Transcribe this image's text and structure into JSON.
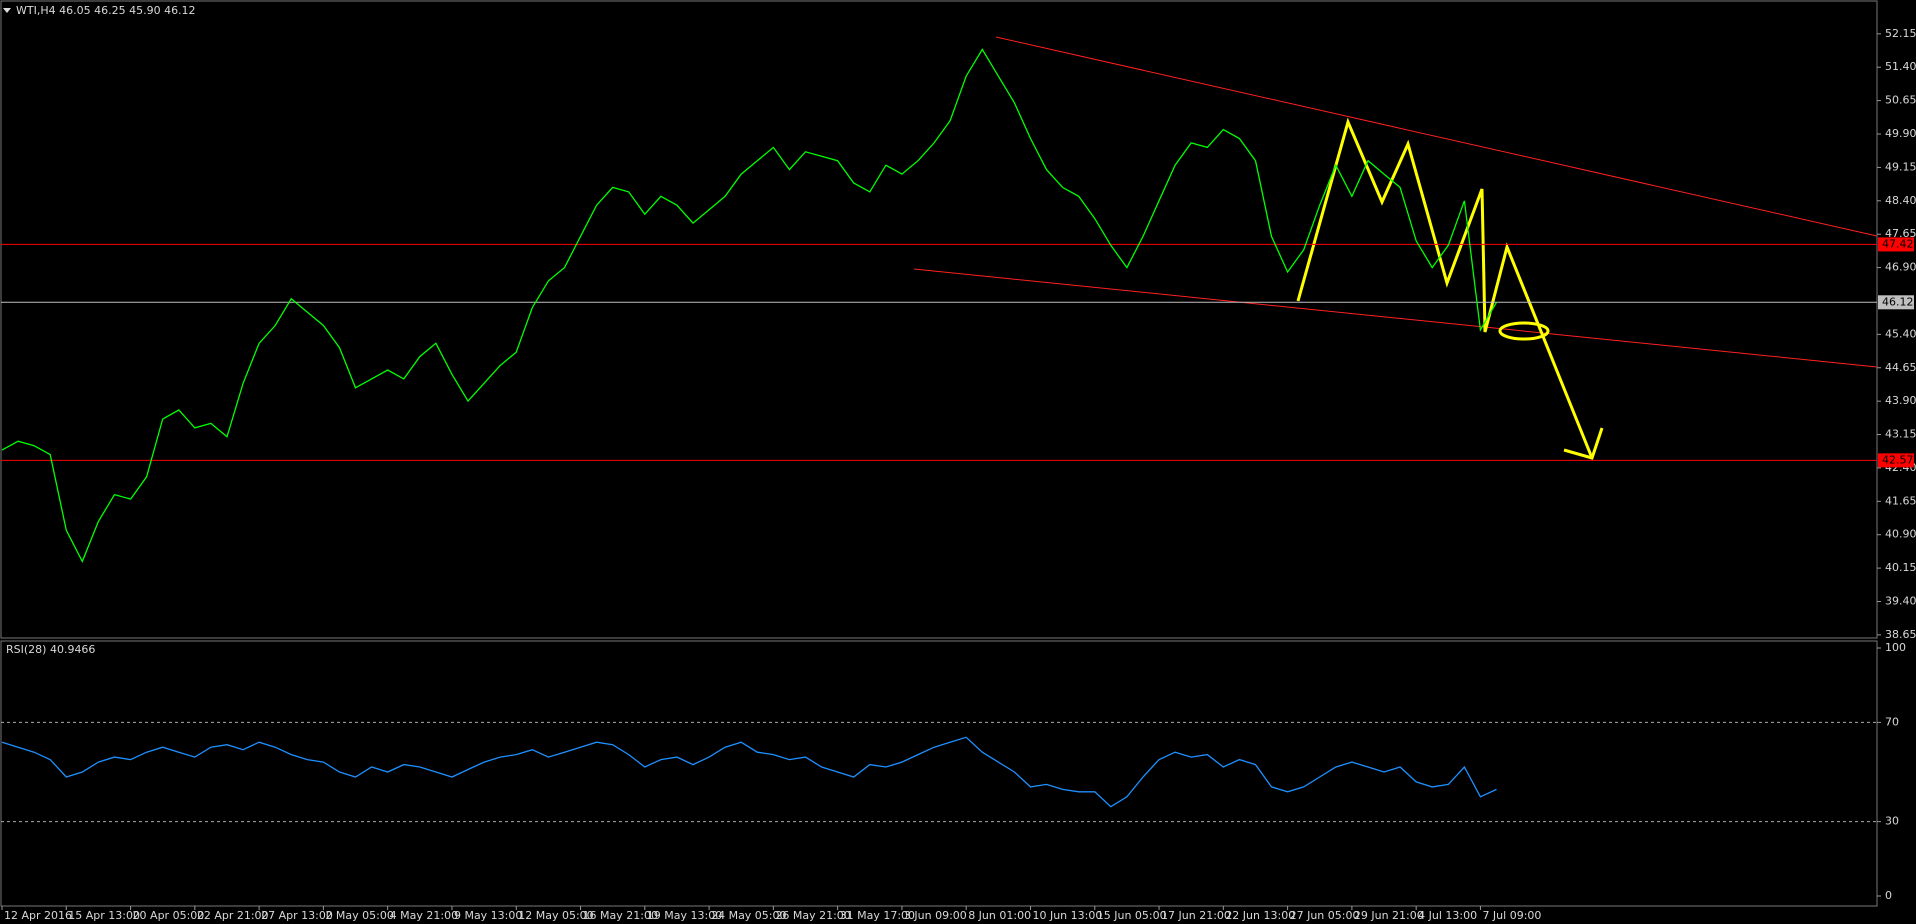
{
  "chart_data": [
    {
      "type": "line",
      "title": "WTI,H4  46.05 46.25 45.90 46.12",
      "categories": [
        "12 Apr 2016",
        null,
        null,
        null,
        "15 Apr 13:00",
        null,
        null,
        null,
        "20 Apr 05:00",
        null,
        null,
        null,
        "22 Apr 21:00",
        null,
        null,
        null,
        "27 Apr 13:00",
        null,
        null,
        null,
        "2 May 05:00",
        null,
        null,
        null,
        "4 May 21:00",
        null,
        null,
        null,
        "9 May 13:00",
        null,
        null,
        null,
        "12 May 05:00",
        null,
        null,
        null,
        "16 May 21:00",
        null,
        null,
        null,
        "19 May 13:00",
        null,
        null,
        null,
        "24 May 05:00",
        null,
        null,
        null,
        "26 May 21:00",
        null,
        null,
        null,
        "31 May 17:00",
        null,
        null,
        null,
        "3 Jun 09:00",
        null,
        null,
        null,
        "8 Jun 01:00",
        null,
        null,
        null,
        "10 Jun 13:00",
        null,
        null,
        null,
        "15 Jun 05:00",
        null,
        null,
        null,
        "17 Jun 21:00",
        null,
        null,
        null,
        "22 Jun 13:00",
        null,
        null,
        null,
        "27 Jun 05:00",
        null,
        null,
        null,
        "29 Jun 21:00",
        null,
        null,
        null,
        "4 Jul 13:00",
        null,
        null,
        null,
        "7 Jul 09:00",
        null
      ],
      "series": [
        {
          "color": "#00ff00",
          "values": [
            42.8,
            43.0,
            42.9,
            42.7,
            41.0,
            40.3,
            41.2,
            41.8,
            41.7,
            42.2,
            43.5,
            43.7,
            43.3,
            43.4,
            43.1,
            44.3,
            45.2,
            45.6,
            46.2,
            45.9,
            45.6,
            45.1,
            44.2,
            44.4,
            44.6,
            44.4,
            44.9,
            45.2,
            44.5,
            43.9,
            44.3,
            44.7,
            45.0,
            46.0,
            46.6,
            46.9,
            47.6,
            48.3,
            48.7,
            48.6,
            48.1,
            48.5,
            48.3,
            47.9,
            48.2,
            48.5,
            49.0,
            49.3,
            49.6,
            49.1,
            49.5,
            49.4,
            49.3,
            48.8,
            48.6,
            49.2,
            49.0,
            49.3,
            49.7,
            50.2,
            51.2,
            51.8,
            51.2,
            50.6,
            49.8,
            49.1,
            48.7,
            48.5,
            48.0,
            47.4,
            46.9,
            47.6,
            48.4,
            49.2,
            49.7,
            49.6,
            50.0,
            49.8,
            49.3,
            47.6,
            46.8,
            47.3,
            48.3,
            49.2,
            48.5,
            49.3,
            49.0,
            48.7,
            47.5,
            46.9,
            47.4,
            48.4,
            45.5,
            46.12
          ]
        }
      ],
      "ylim": [
        38.58,
        52.91
      ],
      "yticks": [
        52.15,
        {
          "value": 51.4,
          "label": "51.40"
        },
        50.65,
        {
          "value": 49.9,
          "label": "49.90"
        },
        49.15,
        {
          "value": 48.4,
          "label": "48.40"
        },
        47.65,
        {
          "value": 46.9,
          "label": "46.90"
        },
        {
          "value": 45.4,
          "label": "45.40"
        },
        44.65,
        {
          "value": 43.9,
          "label": "43.90"
        },
        43.15,
        {
          "value": 42.4,
          "label": "42.40"
        },
        41.65,
        {
          "value": 40.9,
          "label": "40.90"
        },
        40.15,
        {
          "value": 39.4,
          "label": "39.40"
        },
        38.65
      ],
      "levels": [
        {
          "value": 47.42,
          "color": "#ff0000"
        },
        {
          "value": 46.12,
          "color": "#c0c0c0"
        },
        {
          "value": 42.57,
          "color": "#ff0000"
        }
      ]
    },
    {
      "type": "line",
      "title": "RSI(28) 40.9466",
      "series": [
        {
          "color": "#1e90ff",
          "values": [
            62,
            60,
            58,
            55,
            48,
            50,
            54,
            56,
            55,
            58,
            60,
            58,
            56,
            60,
            61,
            59,
            62,
            60,
            57,
            55,
            54,
            50,
            48,
            52,
            50,
            53,
            52,
            50,
            48,
            51,
            54,
            56,
            57,
            59,
            56,
            58,
            60,
            62,
            61,
            57,
            52,
            55,
            56,
            53,
            56,
            60,
            62,
            58,
            57,
            55,
            56,
            52,
            50,
            48,
            53,
            52,
            54,
            57,
            60,
            62,
            64,
            58,
            54,
            50,
            44,
            45,
            43,
            42,
            42,
            36,
            40,
            48,
            55,
            58,
            56,
            57,
            52,
            55,
            53,
            44,
            42,
            44,
            48,
            52,
            54,
            52,
            50,
            52,
            46,
            44,
            45,
            52,
            40,
            43
          ]
        }
      ],
      "ylim": [
        0,
        100
      ],
      "yticks": [
        100,
        70,
        30,
        0
      ]
    }
  ]
}
